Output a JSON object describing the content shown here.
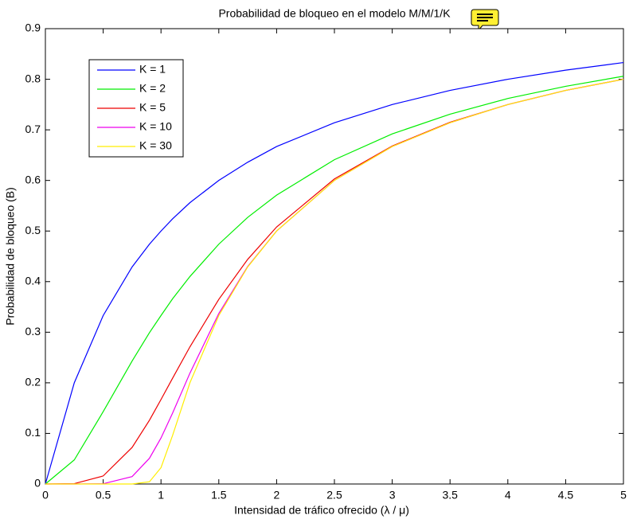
{
  "chart_data": {
    "type": "line",
    "title": "Probabilidad de bloqueo en el modelo M/M/1/K",
    "x_label": "Intensidad de tráfico ofrecido (λ / μ)",
    "y_label": "Probabilidad de bloqueo (B)",
    "x": [
      0,
      0.25,
      0.5,
      0.75,
      0.9,
      1,
      1.1,
      1.25,
      1.5,
      1.75,
      2,
      2.5,
      3,
      3.5,
      4,
      4.5,
      5
    ],
    "series": [
      {
        "name": "K = 1",
        "color": "#0000ff",
        "values": [
          0,
          0.2,
          0.333,
          0.429,
          0.474,
          0.5,
          0.524,
          0.556,
          0.6,
          0.636,
          0.667,
          0.714,
          0.75,
          0.778,
          0.8,
          0.818,
          0.833
        ]
      },
      {
        "name": "K = 2",
        "color": "#00ee00",
        "values": [
          0,
          0.0476,
          0.143,
          0.243,
          0.299,
          0.333,
          0.366,
          0.41,
          0.474,
          0.527,
          0.571,
          0.641,
          0.692,
          0.731,
          0.762,
          0.786,
          0.806
        ]
      },
      {
        "name": "K = 5",
        "color": "#ee0000",
        "values": [
          0,
          0.0007,
          0.0159,
          0.0722,
          0.126,
          0.167,
          0.209,
          0.271,
          0.365,
          0.444,
          0.508,
          0.603,
          0.668,
          0.715,
          0.75,
          0.778,
          0.8
        ]
      },
      {
        "name": "K = 10",
        "color": "#ee00ee",
        "values": [
          0,
          0,
          0.0005,
          0.0147,
          0.0508,
          0.0909,
          0.14,
          0.219,
          0.337,
          0.43,
          0.5,
          0.6,
          0.667,
          0.714,
          0.75,
          0.778,
          0.8
        ]
      },
      {
        "name": "K = 30",
        "color": "#ffee00",
        "values": [
          0,
          0,
          0,
          4e-05,
          0.0044,
          0.0323,
          0.0959,
          0.2,
          0.333,
          0.429,
          0.5,
          0.6,
          0.667,
          0.714,
          0.75,
          0.778,
          0.8
        ]
      }
    ],
    "xlim": [
      0,
      5
    ],
    "ylim": [
      0,
      0.9
    ],
    "xticks": [
      0,
      0.5,
      1,
      1.5,
      2,
      2.5,
      3,
      3.5,
      4,
      4.5,
      5
    ],
    "yticks": [
      0,
      0.1,
      0.2,
      0.3,
      0.4,
      0.5,
      0.6,
      0.7,
      0.8,
      0.9
    ],
    "legend": "upper-left",
    "grid": false
  }
}
